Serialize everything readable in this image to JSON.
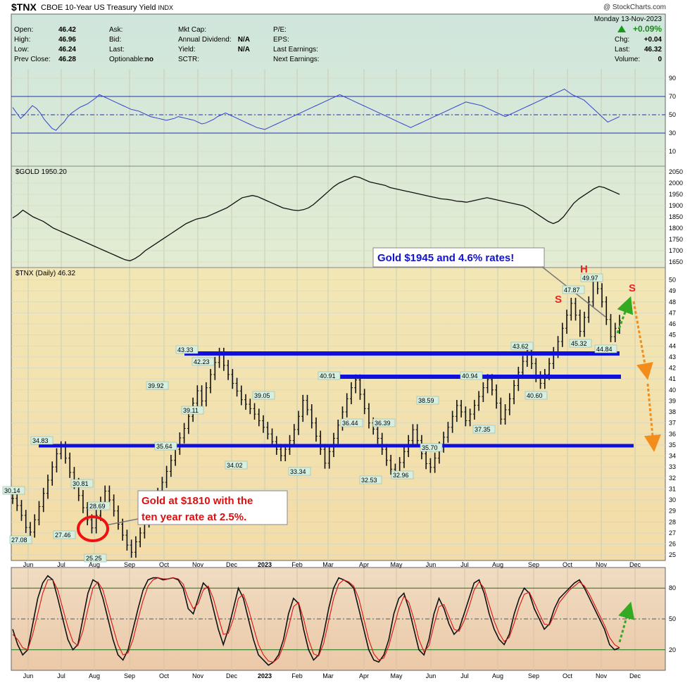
{
  "header": {
    "symbol": "$TNX",
    "name": "CBOE 10-Year US Treasury Yield",
    "exchange": "INDX",
    "credit": "@ StockCharts.com"
  },
  "info": {
    "left": [
      {
        "label": "Open:",
        "value": "46.42"
      },
      {
        "label": "High:",
        "value": "46.96"
      },
      {
        "label": "Low:",
        "value": "46.24"
      },
      {
        "label": "Prev Close:",
        "value": "46.28"
      }
    ],
    "mid1": [
      {
        "label": "Ask:",
        "value": ""
      },
      {
        "label": "Bid:",
        "value": ""
      },
      {
        "label": "Last:",
        "value": ""
      },
      {
        "label": "Optionable:",
        "value": "no"
      }
    ],
    "mid2": [
      {
        "label": "Mkt Cap:",
        "value": ""
      },
      {
        "label": "Annual Dividend:",
        "value": "N/A"
      },
      {
        "label": "Yield:",
        "value": "N/A"
      },
      {
        "label": "SCTR:",
        "value": ""
      }
    ],
    "mid3": [
      {
        "label": "P/E:",
        "value": ""
      },
      {
        "label": "EPS:",
        "value": ""
      },
      {
        "label": "Last Earnings:",
        "value": ""
      },
      {
        "label": "Next Earnings:",
        "value": ""
      }
    ],
    "date": "Monday  13-Nov-2023",
    "change_pct": "+0.09%",
    "right": [
      {
        "label": "Chg:",
        "value": "+0.04"
      },
      {
        "label": "Last:",
        "value": "46.32"
      },
      {
        "label": "Volume:",
        "value": "0"
      }
    ]
  },
  "chart_data": [
    {
      "type": "line",
      "panel": "rsi",
      "y_ticks": [
        90,
        70,
        50,
        30,
        10
      ],
      "ylim": [
        0,
        100
      ],
      "reference_lines": [
        70,
        50,
        30
      ],
      "series": [
        {
          "values": [
            58,
            52,
            46,
            50,
            55,
            60,
            57,
            52,
            45,
            40,
            35,
            33,
            38,
            42,
            48,
            52,
            55,
            58,
            60,
            62,
            65,
            68,
            72,
            70,
            68,
            66,
            64,
            62,
            60,
            58,
            56,
            55,
            54,
            52,
            50,
            48,
            47,
            46,
            45,
            44,
            45,
            46,
            48,
            47,
            46,
            45,
            44,
            42,
            40,
            41,
            43,
            45,
            48,
            50,
            52,
            50,
            48,
            46,
            44,
            42,
            40,
            38,
            36,
            35,
            34,
            36,
            38,
            40,
            42,
            44,
            46,
            48,
            50,
            52,
            54,
            56,
            58,
            60,
            62,
            64,
            66,
            68,
            70,
            72,
            70,
            68,
            66,
            64,
            62,
            60,
            58,
            56,
            54,
            52,
            50,
            48,
            46,
            44,
            42,
            40,
            38,
            36,
            38,
            40,
            42,
            44,
            46,
            48,
            50,
            52,
            54,
            56,
            58,
            60,
            62,
            64,
            63,
            62,
            61,
            60,
            58,
            56,
            54,
            52,
            50,
            48,
            50,
            52,
            54,
            56,
            58,
            60,
            62,
            64,
            66,
            68,
            70,
            72,
            74,
            76,
            78,
            75,
            72,
            70,
            68,
            66,
            62,
            58,
            54,
            50,
            46,
            42,
            44,
            46,
            48
          ]
        }
      ]
    },
    {
      "type": "line",
      "panel": "gold",
      "legend": "$GOLD 1950.20",
      "y_ticks": [
        2050,
        2000,
        1950,
        1900,
        1850,
        1800,
        1750,
        1700,
        1650
      ],
      "ylim": [
        1625,
        2075
      ],
      "series": [
        {
          "values": [
            1845,
            1860,
            1880,
            1865,
            1850,
            1840,
            1830,
            1815,
            1800,
            1790,
            1780,
            1770,
            1760,
            1750,
            1740,
            1730,
            1720,
            1710,
            1700,
            1690,
            1680,
            1670,
            1660,
            1655,
            1665,
            1680,
            1700,
            1715,
            1730,
            1745,
            1760,
            1775,
            1790,
            1805,
            1820,
            1830,
            1840,
            1845,
            1850,
            1860,
            1870,
            1880,
            1890,
            1905,
            1920,
            1935,
            1940,
            1945,
            1940,
            1930,
            1920,
            1910,
            1900,
            1890,
            1885,
            1880,
            1878,
            1882,
            1890,
            1905,
            1925,
            1945,
            1965,
            1985,
            2000,
            2010,
            2020,
            2030,
            2025,
            2015,
            2005,
            2000,
            1995,
            1990,
            1980,
            1975,
            1970,
            1965,
            1960,
            1955,
            1950,
            1945,
            1940,
            1935,
            1930,
            1928,
            1925,
            1920,
            1918,
            1915,
            1920,
            1925,
            1930,
            1935,
            1930,
            1925,
            1920,
            1915,
            1910,
            1905,
            1900,
            1890,
            1875,
            1860,
            1845,
            1830,
            1820,
            1830,
            1850,
            1880,
            1910,
            1930,
            1945,
            1960,
            1975,
            1985,
            1980,
            1970,
            1960,
            1950
          ]
        }
      ]
    },
    {
      "type": "bar",
      "panel": "price",
      "legend": "$TNX (Daily) 46.32",
      "y_ticks": [
        50,
        49,
        48,
        47,
        46,
        45,
        44,
        43,
        42,
        41,
        40,
        39,
        38,
        37,
        36,
        35,
        34,
        33,
        32,
        31,
        30,
        29,
        28,
        27,
        26,
        25
      ],
      "ylim": [
        24.5,
        50.8
      ],
      "x_ticks": [
        "Jun",
        "Jul",
        "Aug",
        "Sep",
        "Oct",
        "Nov",
        "Dec",
        "2023",
        "Feb",
        "Mar",
        "Apr",
        "May",
        "Jun",
        "Jul",
        "Aug",
        "Sep",
        "Oct",
        "Nov",
        "Dec"
      ],
      "series": [
        {
          "values": [
            30.14,
            29.5,
            28.6,
            27.5,
            27.08,
            28.2,
            29.4,
            30.6,
            31.8,
            33.0,
            34.2,
            34.83,
            33.8,
            32.5,
            31.5,
            30.4,
            29.3,
            28.2,
            27.46,
            28.6,
            29.8,
            30.81,
            30.0,
            29.0,
            27.8,
            26.8,
            25.9,
            25.25,
            26.2,
            27.0,
            28.0,
            28.69,
            29.6,
            30.6,
            31.6,
            32.6,
            33.6,
            34.6,
            35.64,
            36.5,
            37.6,
            38.8,
            39.92,
            39.0,
            40.2,
            41.4,
            42.5,
            43.33,
            42.23,
            41.4,
            40.6,
            39.9,
            39.11,
            38.7,
            38.3,
            37.8,
            37.2,
            36.6,
            36.0,
            35.3,
            34.6,
            34.02,
            34.6,
            35.4,
            36.4,
            37.6,
            39.05,
            38.2,
            37.0,
            35.8,
            34.6,
            33.34,
            34.4,
            35.6,
            36.8,
            38.0,
            39.2,
            40.2,
            40.91,
            39.6,
            38.3,
            37.0,
            36.44,
            35.6,
            34.6,
            33.6,
            32.8,
            32.53,
            33.4,
            34.4,
            35.4,
            36.39,
            35.4,
            34.2,
            33.3,
            32.96,
            33.8,
            34.8,
            35.7,
            36.6,
            37.6,
            38.59,
            38.0,
            37.2,
            37.8,
            38.6,
            39.4,
            40.2,
            40.94,
            40.0,
            38.8,
            37.35,
            38.2,
            39.2,
            40.4,
            41.6,
            42.6,
            43.62,
            42.4,
            41.2,
            40.6,
            41.4,
            42.4,
            43.4,
            44.4,
            45.6,
            46.8,
            47.87,
            46.8,
            45.32,
            46.6,
            48.0,
            49.97,
            49.2,
            48.0,
            46.4,
            44.84,
            45.6,
            46.32
          ]
        }
      ],
      "annotations": [
        "Gold $1945 and 4.6% rates!",
        "Gold at $1810 with the ten year rate at 2.5%.",
        "S",
        "H",
        "S"
      ],
      "value_labels": [
        "30.14",
        "27.08",
        "34.83",
        "27.46",
        "30.81",
        "28.69",
        "25.25",
        "39.92",
        "35.64",
        "43.33",
        "42.23",
        "39.11",
        "34.02",
        "39.05",
        "33.34",
        "40.91",
        "36.44",
        "32.53",
        "36.39",
        "32.96",
        "38.59",
        "35.70",
        "40.94",
        "37.35",
        "43.62",
        "40.60",
        "47.87",
        "45.32",
        "49.97",
        "44.84"
      ],
      "support_lines": [
        43.3,
        41.2,
        34.8
      ]
    },
    {
      "type": "line",
      "panel": "stochastic",
      "y_ticks": [
        80,
        50,
        20
      ],
      "ylim": [
        0,
        100
      ],
      "reference_lines": [
        80,
        50,
        20
      ],
      "series": [
        {
          "values": [
            40,
            25,
            15,
            20,
            45,
            70,
            85,
            92,
            88,
            70,
            50,
            30,
            20,
            25,
            50,
            75,
            88,
            85,
            70,
            50,
            30,
            15,
            10,
            20,
            40,
            60,
            78,
            88,
            90,
            90,
            88,
            89,
            90,
            88,
            80,
            60,
            55,
            70,
            85,
            80,
            60,
            40,
            25,
            40,
            60,
            80,
            70,
            50,
            30,
            15,
            10,
            5,
            8,
            15,
            30,
            55,
            70,
            65,
            40,
            20,
            10,
            15,
            35,
            60,
            80,
            90,
            88,
            85,
            80,
            60,
            40,
            20,
            10,
            8,
            15,
            30,
            55,
            70,
            75,
            60,
            40,
            20,
            15,
            30,
            55,
            70,
            60,
            45,
            35,
            40,
            55,
            70,
            85,
            88,
            75,
            55,
            40,
            30,
            25,
            35,
            55,
            70,
            80,
            75,
            60,
            50,
            40,
            45,
            60,
            70,
            75,
            80,
            85,
            88,
            80,
            70,
            60,
            50,
            40,
            25,
            20,
            22
          ]
        },
        {
          "values": [
            35,
            30,
            22,
            20,
            35,
            55,
            75,
            88,
            88,
            78,
            60,
            42,
            28,
            24,
            38,
            60,
            80,
            86,
            78,
            60,
            42,
            25,
            15,
            17,
            30,
            50,
            68,
            82,
            88,
            90,
            89,
            89,
            90,
            89,
            84,
            70,
            60,
            65,
            78,
            82,
            70,
            52,
            35,
            36,
            50,
            70,
            74,
            60,
            42,
            25,
            15,
            9,
            8,
            12,
            24,
            42,
            62,
            66,
            50,
            30,
            16,
            14,
            26,
            48,
            70,
            84,
            88,
            86,
            82,
            70,
            50,
            30,
            16,
            10,
            12,
            24,
            42,
            60,
            72,
            66,
            50,
            30,
            18,
            24,
            44,
            62,
            64,
            52,
            40,
            38,
            48,
            62,
            78,
            86,
            80,
            64,
            48,
            36,
            28,
            32,
            46,
            62,
            74,
            76,
            66,
            55,
            45,
            44,
            54,
            66,
            72,
            78,
            82,
            86,
            82,
            74,
            64,
            54,
            44,
            32,
            25,
            22
          ]
        }
      ]
    }
  ],
  "x_ticks_bottom": [
    "Jun",
    "Jul",
    "Aug",
    "Sep",
    "Oct",
    "Nov",
    "Dec",
    "2023",
    "Feb",
    "Mar",
    "Apr",
    "May",
    "Jun",
    "Jul",
    "Aug",
    "Sep",
    "Oct",
    "Nov",
    "Dec"
  ]
}
